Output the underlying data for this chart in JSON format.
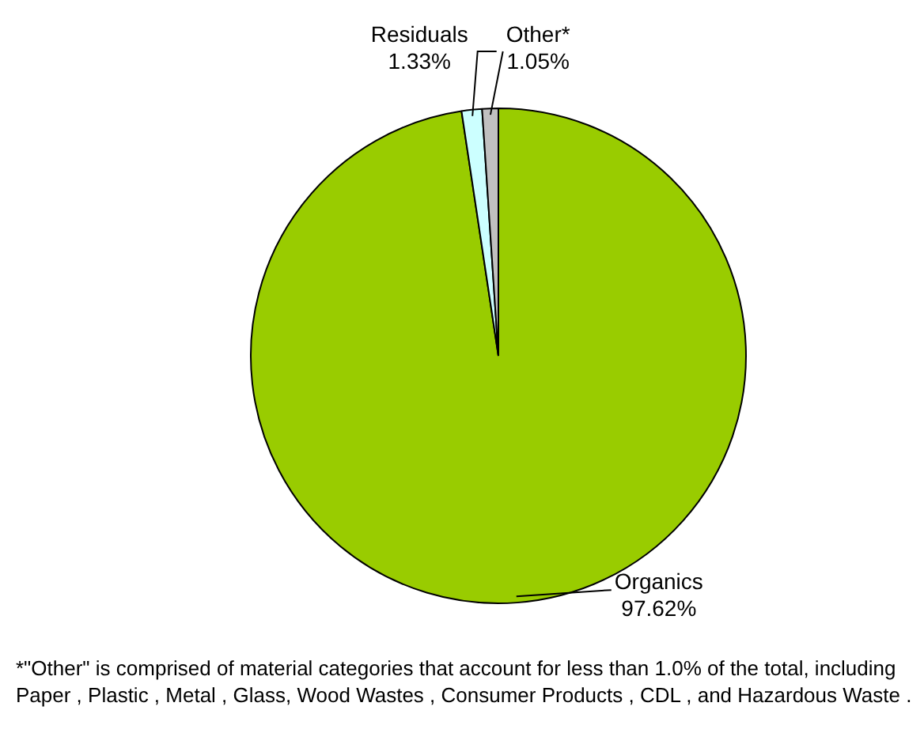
{
  "chart_data": {
    "type": "pie",
    "categories": [
      "Organics",
      "Residuals",
      "Other*"
    ],
    "values": [
      97.62,
      1.33,
      1.05
    ],
    "value_labels": [
      "97.62%",
      "1.33%",
      "1.05%"
    ],
    "colors": [
      "#99cc00",
      "#ccffff",
      "#c0c0c0"
    ],
    "legend": false,
    "annotations": [
      "*\"Other\" is comprised of material categories that account for less than 1.0% of the total, including Paper , Plastic , Metal , Glass, Wood Wastes , Consumer Products , CDL , and Hazardous Waste ."
    ]
  }
}
